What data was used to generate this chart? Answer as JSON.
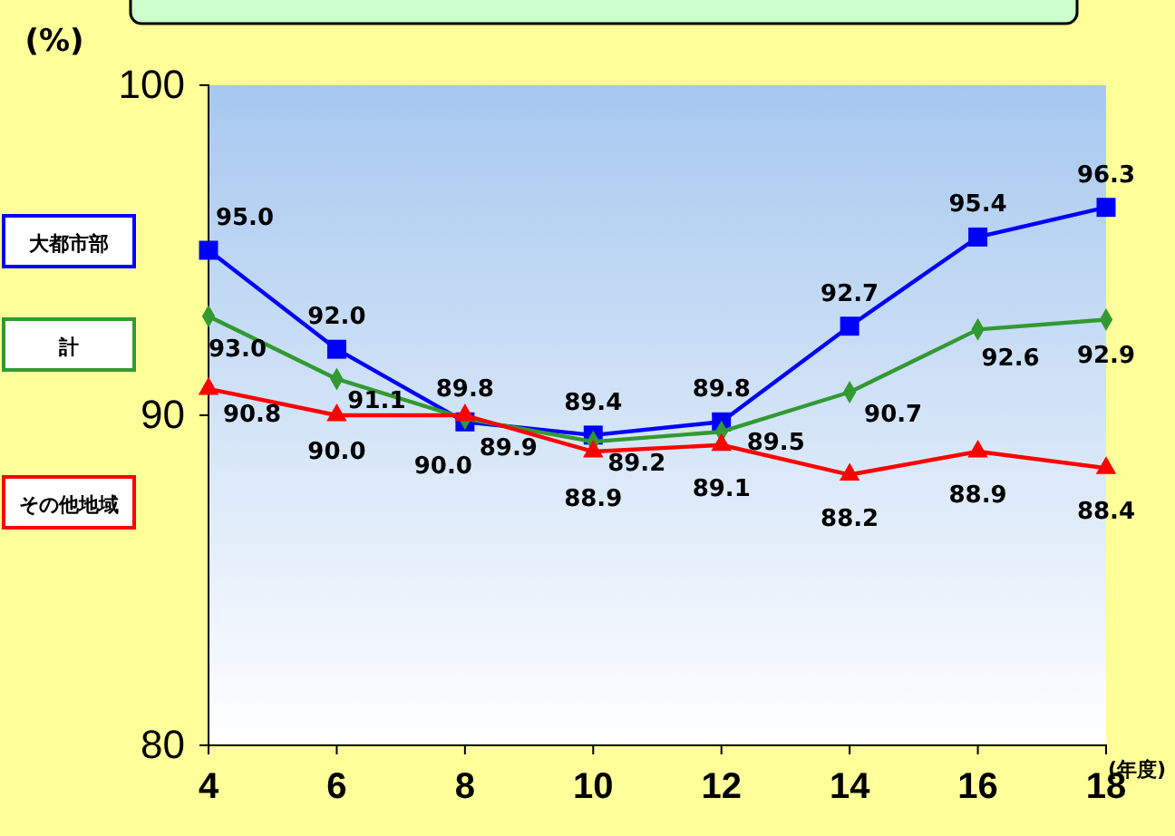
{
  "chart_data": {
    "type": "line",
    "ylabel": "(%)",
    "xlabel": "(年度)",
    "x": [
      4,
      6,
      8,
      10,
      12,
      14,
      16,
      18
    ],
    "xlim": [
      4,
      18
    ],
    "xticks": [
      4,
      6,
      8,
      10,
      12,
      14,
      16,
      18
    ],
    "ylim": [
      80,
      100
    ],
    "yticks": [
      80,
      90,
      100
    ],
    "legend": "left",
    "grid": false,
    "series": [
      {
        "name": "大都市部",
        "color": "#0000ff",
        "marker": "square",
        "values": [
          95.0,
          92.0,
          89.8,
          89.4,
          89.8,
          92.7,
          95.4,
          96.3
        ],
        "value_labels": [
          "95.0",
          "92.0",
          "89.8",
          "89.4",
          "89.8",
          "92.7",
          "95.4",
          "96.3"
        ]
      },
      {
        "name": "計",
        "color": "#339933",
        "marker": "diamond",
        "values": [
          93.0,
          91.1,
          89.9,
          89.2,
          89.5,
          90.7,
          92.6,
          92.9
        ],
        "value_labels": [
          "93.0",
          "91.1",
          "89.9",
          "89.2",
          "89.5",
          "90.7",
          "92.6",
          "92.9"
        ]
      },
      {
        "name": "その他地域",
        "color": "#ff0000",
        "marker": "triangle",
        "values": [
          90.8,
          90.0,
          90.0,
          88.9,
          89.1,
          88.2,
          88.9,
          88.4
        ],
        "value_labels": [
          "90.8",
          "90.0",
          "90.0",
          "88.9",
          "89.1",
          "88.2",
          "88.9",
          "88.4"
        ]
      }
    ]
  }
}
